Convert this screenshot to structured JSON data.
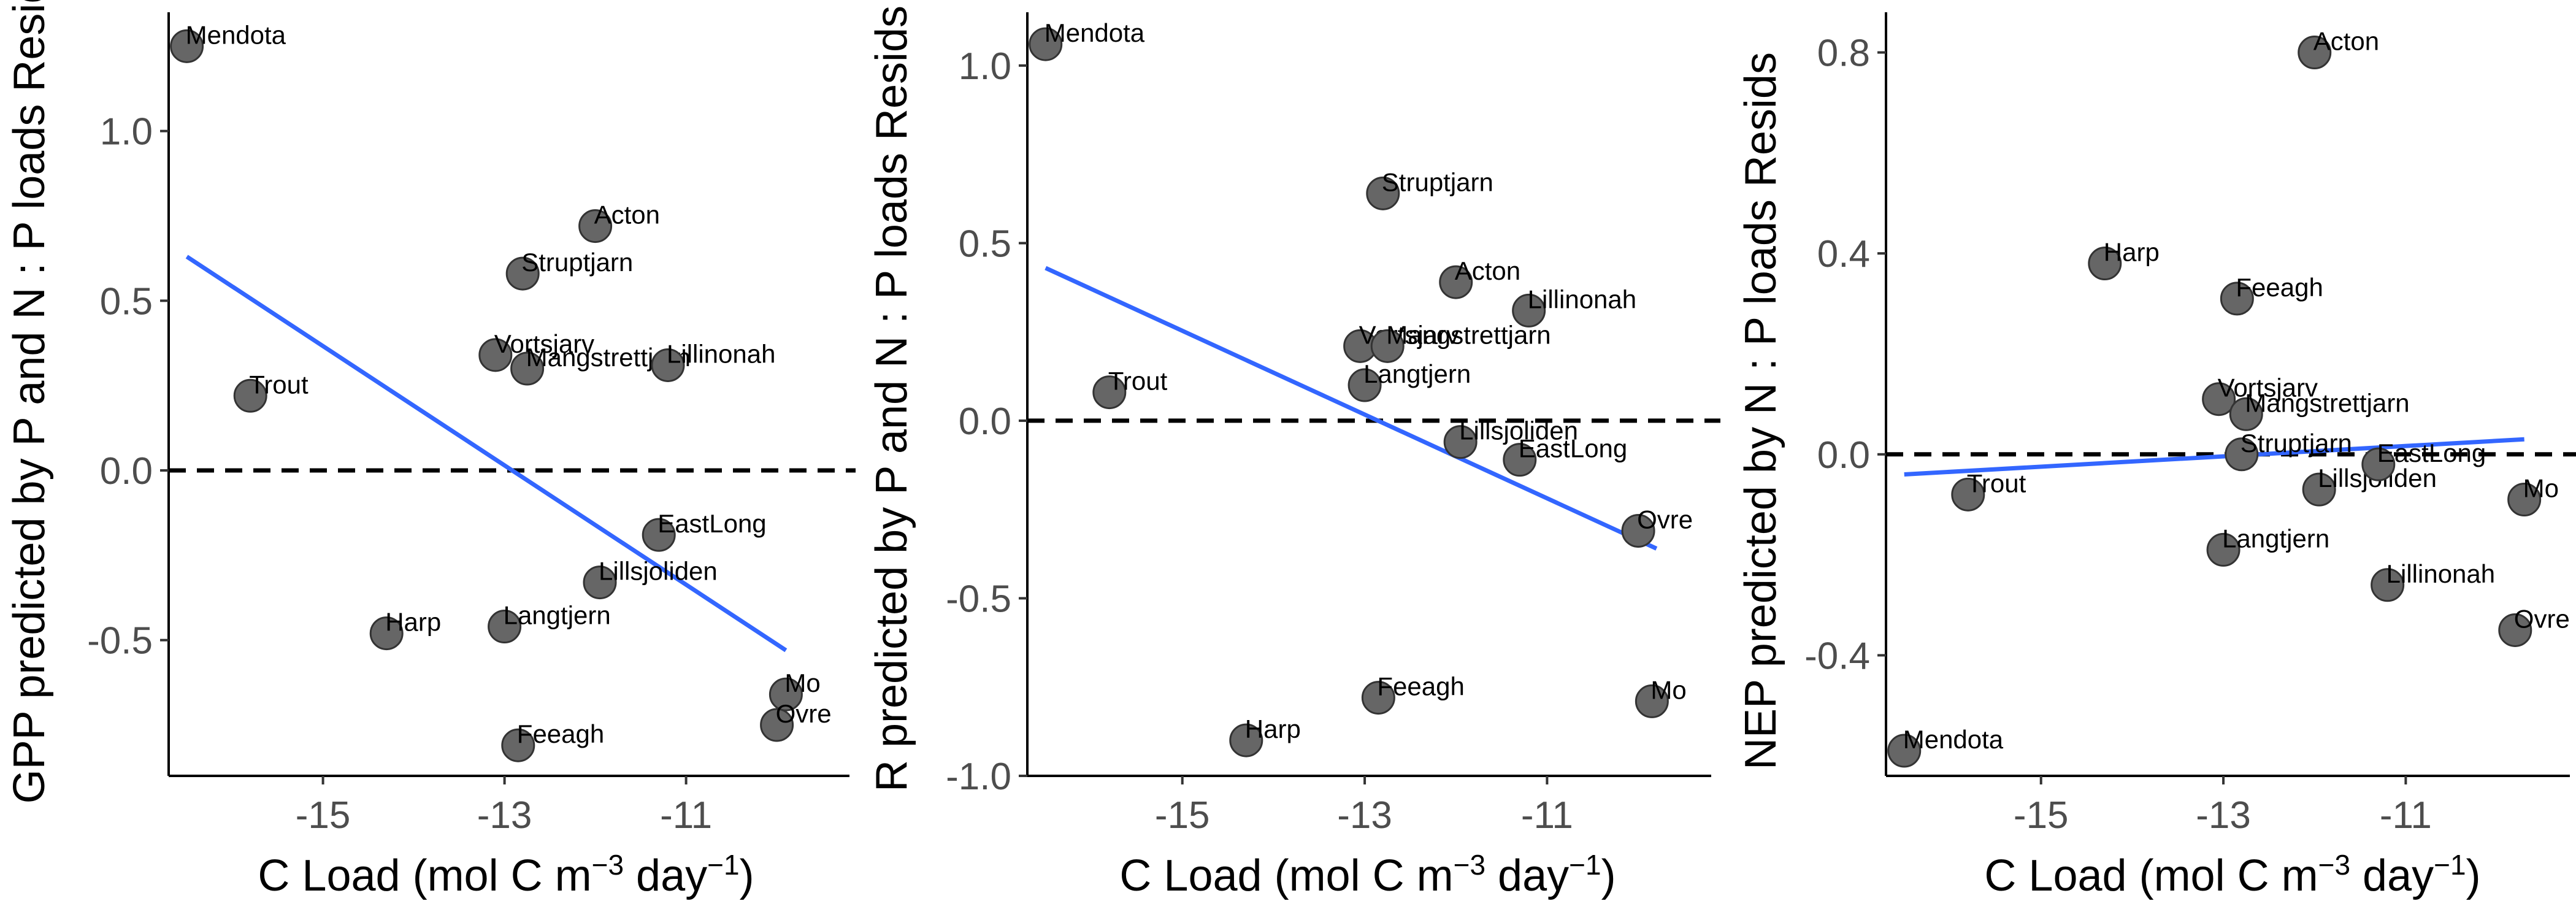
{
  "figure": {
    "xlabel_main": "C Load (mol C m",
    "xlabel_exp1": "−3",
    "xlabel_mid": " day",
    "xlabel_exp2": "−1",
    "xlabel_end": ")"
  },
  "chart_data": [
    {
      "type": "scatter",
      "title": "",
      "xlabel": "C Load (mol C m−3 day−1)",
      "ylabel": "GPP predicted by P and N : P loads Resids",
      "xlim": [
        -16.7,
        -9.2
      ],
      "ylim": [
        -0.9,
        1.35
      ],
      "xticks": [
        -15,
        -13,
        -11
      ],
      "yticks": [
        -0.5,
        0.0,
        0.5,
        1.0
      ],
      "ytick_labels": [
        "-0.5",
        "0.0",
        "0.5",
        "1.0"
      ],
      "reference_line_y": 0,
      "grid": false,
      "fit": {
        "type": "linear",
        "x": [
          -16.5,
          -9.9
        ],
        "y": [
          0.63,
          -0.53
        ],
        "color": "#3366ff"
      },
      "points": [
        {
          "label": "Mendota",
          "x": -16.5,
          "y": 1.25
        },
        {
          "label": "Trout",
          "x": -15.8,
          "y": 0.22
        },
        {
          "label": "Harp",
          "x": -14.3,
          "y": -0.48
        },
        {
          "label": "Vortsjarv",
          "x": -13.1,
          "y": 0.34
        },
        {
          "label": "Langtjern",
          "x": -13.0,
          "y": -0.46
        },
        {
          "label": "Struptjarn",
          "x": -12.8,
          "y": 0.58
        },
        {
          "label": "Feeagh",
          "x": -12.85,
          "y": -0.81
        },
        {
          "label": "Mangstrettjarn",
          "x": -12.75,
          "y": 0.3
        },
        {
          "label": "Acton",
          "x": -12.0,
          "y": 0.72
        },
        {
          "label": "Lillsjoliden",
          "x": -11.95,
          "y": -0.33
        },
        {
          "label": "Lillinonah",
          "x": -11.2,
          "y": 0.31
        },
        {
          "label": "EastLong",
          "x": -11.3,
          "y": -0.19
        },
        {
          "label": "Mo",
          "x": -9.9,
          "y": -0.66
        },
        {
          "label": "Ovre",
          "x": -10.0,
          "y": -0.75
        }
      ]
    },
    {
      "type": "scatter",
      "title": "",
      "xlabel": "C Load (mol C m−3 day−1)",
      "ylabel": "R predicted by P and N : P loads Resids",
      "xlim": [
        -16.7,
        -9.2
      ],
      "ylim": [
        -1.0,
        1.15
      ],
      "xticks": [
        -15,
        -13,
        -11
      ],
      "yticks": [
        -1.0,
        -0.5,
        0.0,
        0.5,
        1.0
      ],
      "ytick_labels": [
        "-1.0",
        "-0.5",
        "0.0",
        "0.5",
        "1.0"
      ],
      "reference_line_y": 0,
      "grid": false,
      "fit": {
        "type": "linear",
        "x": [
          -16.5,
          -9.8
        ],
        "y": [
          0.43,
          -0.36
        ],
        "color": "#3366ff"
      },
      "points": [
        {
          "label": "Mendota",
          "x": -16.5,
          "y": 1.06
        },
        {
          "label": "Trout",
          "x": -15.8,
          "y": 0.08
        },
        {
          "label": "Harp",
          "x": -14.3,
          "y": -0.9
        },
        {
          "label": "Vortsjarv",
          "x": -13.05,
          "y": 0.21
        },
        {
          "label": "Langtjern",
          "x": -13.0,
          "y": 0.1
        },
        {
          "label": "Struptjarn",
          "x": -12.8,
          "y": 0.64
        },
        {
          "label": "Feeagh",
          "x": -12.85,
          "y": -0.78
        },
        {
          "label": "Mangstrettjarn",
          "x": -12.75,
          "y": 0.21
        },
        {
          "label": "Acton",
          "x": -12.0,
          "y": 0.39
        },
        {
          "label": "Lillsjoliden",
          "x": -11.95,
          "y": -0.06
        },
        {
          "label": "Lillinonah",
          "x": -11.2,
          "y": 0.31
        },
        {
          "label": "EastLong",
          "x": -11.3,
          "y": -0.11
        },
        {
          "label": "Ovre",
          "x": -10.0,
          "y": -0.31
        },
        {
          "label": "Mo",
          "x": -9.85,
          "y": -0.79
        }
      ]
    },
    {
      "type": "scatter",
      "title": "",
      "xlabel": "C Load (mol C m−3 day−1)",
      "ylabel": "NEP predicted by N : P loads Resids",
      "xlim": [
        -16.7,
        -9.2
      ],
      "ylim": [
        -0.64,
        0.88
      ],
      "xticks": [
        -15,
        -13,
        -11
      ],
      "yticks": [
        -0.4,
        0.0,
        0.4,
        0.8
      ],
      "ytick_labels": [
        "-0.4",
        "0.0",
        "0.4",
        "0.8"
      ],
      "reference_line_y": 0,
      "grid": false,
      "fit": {
        "type": "linear",
        "x": [
          -16.5,
          -9.7
        ],
        "y": [
          -0.04,
          0.03
        ],
        "color": "#3366ff"
      },
      "points": [
        {
          "label": "Mendota",
          "x": -16.5,
          "y": -0.59
        },
        {
          "label": "Trout",
          "x": -15.8,
          "y": -0.08
        },
        {
          "label": "Harp",
          "x": -14.3,
          "y": 0.38
        },
        {
          "label": "Vortsjarv",
          "x": -13.05,
          "y": 0.11
        },
        {
          "label": "Langtjern",
          "x": -13.0,
          "y": -0.19
        },
        {
          "label": "Feeagh",
          "x": -12.85,
          "y": 0.31
        },
        {
          "label": "Struptjarn",
          "x": -12.8,
          "y": 0.0
        },
        {
          "label": "Mangstrettjarn",
          "x": -12.75,
          "y": 0.08
        },
        {
          "label": "Acton",
          "x": -12.0,
          "y": 0.8
        },
        {
          "label": "Lillsjoliden",
          "x": -11.95,
          "y": -0.07
        },
        {
          "label": "Lillinonah",
          "x": -11.2,
          "y": -0.26
        },
        {
          "label": "EastLong",
          "x": -11.3,
          "y": -0.02
        },
        {
          "label": "Ovre",
          "x": -9.8,
          "y": -0.35
        },
        {
          "label": "Mo",
          "x": -9.7,
          "y": -0.09
        }
      ]
    }
  ]
}
